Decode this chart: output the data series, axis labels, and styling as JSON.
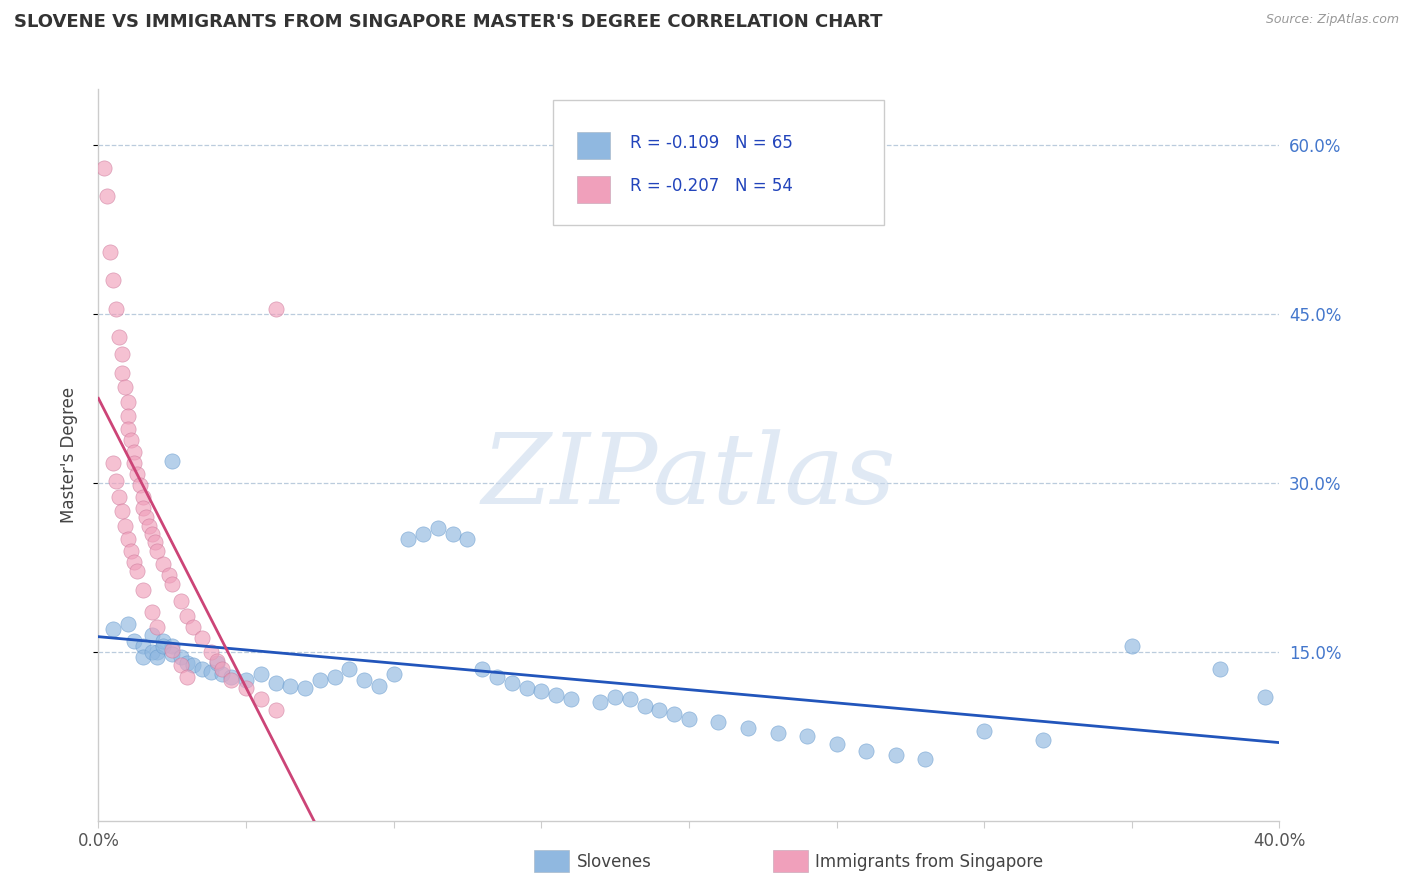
{
  "title": "SLOVENE VS IMMIGRANTS FROM SINGAPORE MASTER'S DEGREE CORRELATION CHART",
  "source": "Source: ZipAtlas.com",
  "ylabel": "Master's Degree",
  "right_yticks": [
    0.6,
    0.45,
    0.3,
    0.15
  ],
  "right_ytick_labels": [
    "60.0%",
    "45.0%",
    "30.0%",
    "15.0%"
  ],
  "xmin": 0.0,
  "xmax": 0.4,
  "ymin": 0.0,
  "ymax": 0.65,
  "blue_color": "#90b8e0",
  "pink_color": "#f0a0bb",
  "blue_line_color": "#2255bb",
  "pink_line_color": "#cc4477",
  "R_blue": -0.109,
  "N_blue": 65,
  "R_pink": -0.207,
  "N_pink": 54,
  "watermark": "ZIPatlas",
  "blue_scatter_x": [
    0.005,
    0.01,
    0.012,
    0.015,
    0.018,
    0.02,
    0.022,
    0.025,
    0.015,
    0.018,
    0.02,
    0.022,
    0.025,
    0.028,
    0.03,
    0.032,
    0.035,
    0.038,
    0.04,
    0.042,
    0.045,
    0.05,
    0.055,
    0.06,
    0.065,
    0.07,
    0.075,
    0.08,
    0.085,
    0.09,
    0.095,
    0.1,
    0.105,
    0.11,
    0.115,
    0.12,
    0.125,
    0.13,
    0.135,
    0.14,
    0.145,
    0.15,
    0.155,
    0.16,
    0.17,
    0.175,
    0.18,
    0.185,
    0.19,
    0.195,
    0.2,
    0.21,
    0.22,
    0.23,
    0.24,
    0.25,
    0.26,
    0.27,
    0.28,
    0.3,
    0.32,
    0.35,
    0.38,
    0.395,
    0.025
  ],
  "blue_scatter_y": [
    0.17,
    0.175,
    0.16,
    0.155,
    0.165,
    0.15,
    0.16,
    0.155,
    0.145,
    0.15,
    0.145,
    0.155,
    0.148,
    0.145,
    0.14,
    0.138,
    0.135,
    0.132,
    0.14,
    0.13,
    0.128,
    0.125,
    0.13,
    0.122,
    0.12,
    0.118,
    0.125,
    0.128,
    0.135,
    0.125,
    0.12,
    0.13,
    0.25,
    0.255,
    0.26,
    0.255,
    0.25,
    0.135,
    0.128,
    0.122,
    0.118,
    0.115,
    0.112,
    0.108,
    0.105,
    0.11,
    0.108,
    0.102,
    0.098,
    0.095,
    0.09,
    0.088,
    0.082,
    0.078,
    0.075,
    0.068,
    0.062,
    0.058,
    0.055,
    0.08,
    0.072,
    0.155,
    0.135,
    0.11,
    0.32
  ],
  "pink_scatter_x": [
    0.002,
    0.003,
    0.004,
    0.005,
    0.006,
    0.007,
    0.008,
    0.008,
    0.009,
    0.01,
    0.01,
    0.01,
    0.011,
    0.012,
    0.012,
    0.013,
    0.014,
    0.015,
    0.015,
    0.016,
    0.017,
    0.018,
    0.019,
    0.02,
    0.022,
    0.024,
    0.025,
    0.028,
    0.03,
    0.032,
    0.035,
    0.038,
    0.04,
    0.042,
    0.045,
    0.05,
    0.055,
    0.06,
    0.005,
    0.006,
    0.007,
    0.008,
    0.009,
    0.01,
    0.011,
    0.012,
    0.013,
    0.015,
    0.018,
    0.02,
    0.025,
    0.028,
    0.03,
    0.06
  ],
  "pink_scatter_y": [
    0.58,
    0.555,
    0.505,
    0.48,
    0.455,
    0.43,
    0.415,
    0.398,
    0.385,
    0.372,
    0.36,
    0.348,
    0.338,
    0.328,
    0.318,
    0.308,
    0.298,
    0.288,
    0.278,
    0.27,
    0.262,
    0.255,
    0.248,
    0.24,
    0.228,
    0.218,
    0.21,
    0.195,
    0.182,
    0.172,
    0.162,
    0.15,
    0.142,
    0.135,
    0.125,
    0.118,
    0.108,
    0.098,
    0.318,
    0.302,
    0.288,
    0.275,
    0.262,
    0.25,
    0.24,
    0.23,
    0.222,
    0.205,
    0.185,
    0.172,
    0.152,
    0.138,
    0.128,
    0.455
  ]
}
